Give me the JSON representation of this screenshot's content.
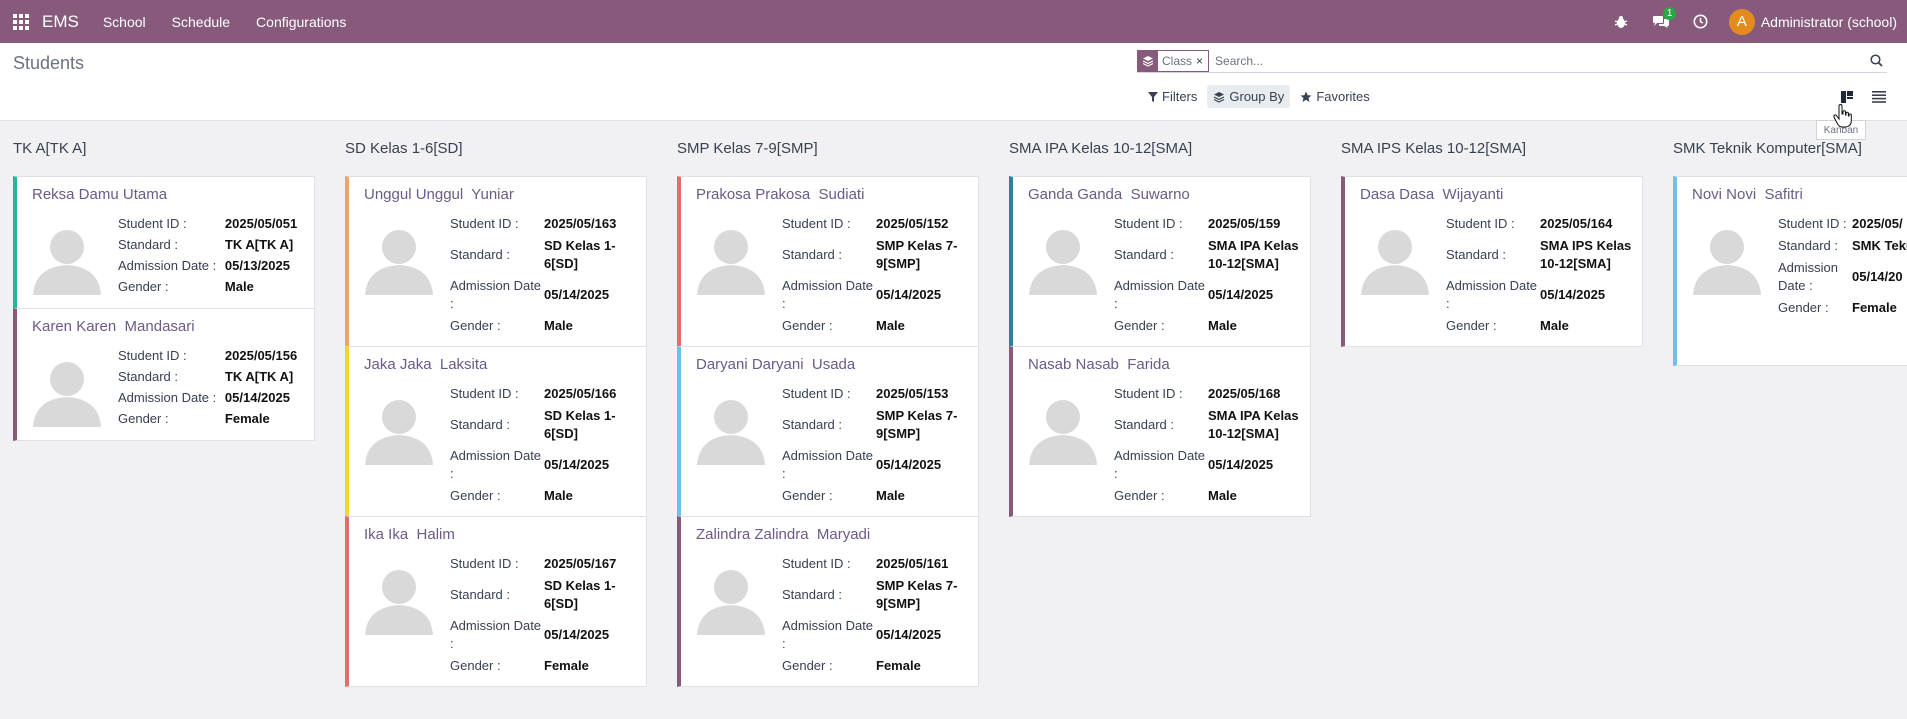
{
  "navbar": {
    "brand": "EMS",
    "menu": [
      "School",
      "Schedule",
      "Configurations"
    ],
    "message_badge": "1",
    "user_initial": "A",
    "user_name": "Administrator (school)",
    "icons": [
      "apps-grid-icon",
      "bug-icon",
      "chat-icon",
      "clock-icon"
    ]
  },
  "control": {
    "title": "Students",
    "facet_label": "Class",
    "facet_remove": "×",
    "search_placeholder": "Search...",
    "filters_label": "Filters",
    "groupby_label": "Group By",
    "favorites_label": "Favorites",
    "tooltip": "Kanban"
  },
  "labels": {
    "student_id": "Student ID :",
    "standard": "Standard :",
    "admission_date": "Admission Date :",
    "gender": "Gender :"
  },
  "columns": [
    {
      "title": "TK A[TK A]",
      "cards": [
        {
          "name": "Reksa Damu Utama",
          "student_id": "2025/05/051",
          "standard": "TK A[TK A]",
          "admission_date": "05/13/2025",
          "gender": "Male",
          "color": "#21b799"
        },
        {
          "name": "Karen Karen  Mandasari",
          "student_id": "2025/05/156",
          "standard": "TK A[TK A]",
          "admission_date": "05/14/2025",
          "gender": "Female",
          "color": "#875a7b"
        }
      ]
    },
    {
      "title": "SD Kelas 1-6[SD]",
      "cards": [
        {
          "name": "Unggul Unggul  Yuniar",
          "student_id": "2025/05/163",
          "standard": "SD Kelas 1-6[SD]",
          "admission_date": "05/14/2025",
          "gender": "Male",
          "color": "#f4a460"
        },
        {
          "name": "Jaka Jaka  Laksita",
          "student_id": "2025/05/166",
          "standard": "SD Kelas 1-6[SD]",
          "admission_date": "05/14/2025",
          "gender": "Male",
          "color": "#f5d32e"
        },
        {
          "name": "Ika Ika  Halim",
          "student_id": "2025/05/167",
          "standard": "SD Kelas 1-6[SD]",
          "admission_date": "05/14/2025",
          "gender": "Female",
          "color": "#e86b6b"
        }
      ]
    },
    {
      "title": "SMP Kelas 7-9[SMP]",
      "cards": [
        {
          "name": "Prakosa Prakosa  Sudiati",
          "student_id": "2025/05/152",
          "standard": "SMP Kelas 7-9[SMP]",
          "admission_date": "05/14/2025",
          "gender": "Male",
          "color": "#e86b6b"
        },
        {
          "name": "Daryani Daryani  Usada",
          "student_id": "2025/05/153",
          "standard": "SMP Kelas 7-9[SMP]",
          "admission_date": "05/14/2025",
          "gender": "Male",
          "color": "#6cc1ed"
        },
        {
          "name": "Zalindra Zalindra  Maryadi",
          "student_id": "2025/05/161",
          "standard": "SMP Kelas 7-9[SMP]",
          "admission_date": "05/14/2025",
          "gender": "Female",
          "color": "#875a7b"
        }
      ]
    },
    {
      "title": "SMA IPA Kelas 10-12[SMA]",
      "cards": [
        {
          "name": "Ganda Ganda  Suwarno",
          "student_id": "2025/05/159",
          "standard": "SMA IPA Kelas 10-12[SMA]",
          "admission_date": "05/14/2025",
          "gender": "Male",
          "color": "#2c8397"
        },
        {
          "name": "Nasab Nasab  Farida",
          "student_id": "2025/05/168",
          "standard": "SMA IPA Kelas 10-12[SMA]",
          "admission_date": "05/14/2025",
          "gender": "Male",
          "color": "#875a7b"
        }
      ]
    },
    {
      "title": "SMA IPS Kelas 10-12[SMA]",
      "cards": [
        {
          "name": "Dasa Dasa  Wijayanti",
          "student_id": "2025/05/164",
          "standard": "SMA IPS Kelas 10-12[SMA]",
          "admission_date": "05/14/2025",
          "gender": "Male",
          "color": "#875a7b"
        }
      ]
    },
    {
      "title": "SMK Teknik Komputer[SMA]",
      "cards": [
        {
          "name": "Novi Novi  Safitri",
          "student_id": "2025/05/",
          "standard": "SMK Teknik Komputer",
          "admission_date": "05/14/20",
          "gender": "Female",
          "color": "#6cc1ed"
        }
      ]
    }
  ]
}
